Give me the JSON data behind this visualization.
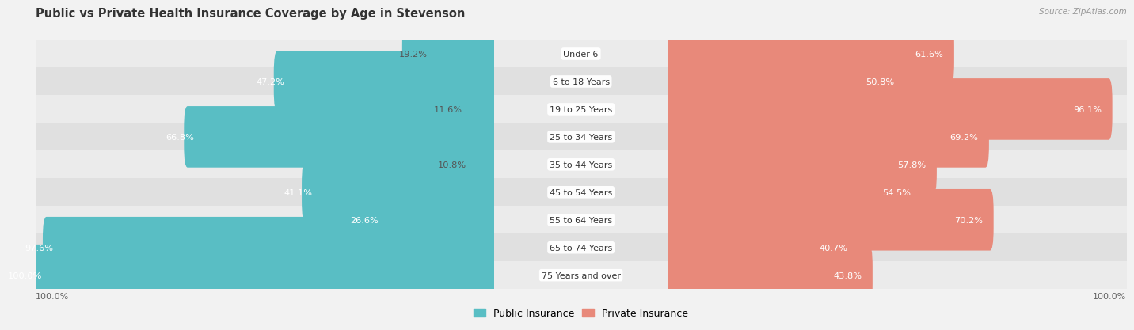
{
  "title": "Public vs Private Health Insurance Coverage by Age in Stevenson",
  "source": "Source: ZipAtlas.com",
  "categories": [
    "Under 6",
    "6 to 18 Years",
    "19 to 25 Years",
    "25 to 34 Years",
    "35 to 44 Years",
    "45 to 54 Years",
    "55 to 64 Years",
    "65 to 74 Years",
    "75 Years and over"
  ],
  "public_values": [
    19.2,
    47.2,
    11.6,
    66.8,
    10.8,
    41.1,
    26.6,
    97.6,
    100.0
  ],
  "private_values": [
    61.6,
    50.8,
    96.1,
    69.2,
    57.8,
    54.5,
    70.2,
    40.7,
    43.8
  ],
  "public_color": "#59bec4",
  "private_color": "#e8897a",
  "private_color_dark": "#d9604a",
  "bg_color": "#f2f2f2",
  "row_colors": [
    "#ebebeb",
    "#e0e0e0"
  ],
  "max_value": 100.0,
  "label_public": "Public Insurance",
  "label_private": "Private Insurance",
  "title_fontsize": 10.5,
  "label_fontsize": 8.0,
  "value_fontsize": 8.2,
  "bar_height": 0.62,
  "inside_label_threshold_pub": 20,
  "inside_label_threshold_priv": 20
}
